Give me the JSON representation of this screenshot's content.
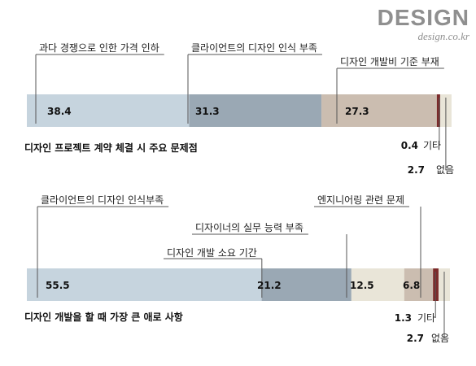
{
  "brand": {
    "logo": "DESIGN",
    "site": "design.co.kr"
  },
  "chart_data": [
    {
      "type": "bar",
      "title": "디자인 프로젝트 계약 체결 시 주요 문제점",
      "series": [
        {
          "name": "과다 경쟁으로 인한 가격 인하",
          "value": 38.4,
          "color": "#c6d4de"
        },
        {
          "name": "클라이언트의 디자인 인식 부족",
          "value": 31.3,
          "color": "#9aa8b4"
        },
        {
          "name": "디자인 개발비 기준 부재",
          "value": 27.3,
          "color": "#cbbdb0"
        },
        {
          "name": "기타",
          "value": 0.4,
          "color": "#c8a09e"
        },
        {
          "name": "없음",
          "value": 2.7,
          "color": "#e9e5d8"
        }
      ]
    },
    {
      "type": "bar",
      "title": "디자인 개발을 할 때 가장 큰 애로 사항",
      "series": [
        {
          "name": "클라이언트의 디자인 인식부족",
          "value": 55.5,
          "color": "#c6d4de"
        },
        {
          "name": "디자인 개발 소요 기간",
          "value": 21.2,
          "color": "#9aa8b4"
        },
        {
          "name": "디자이너의 실무 능력 부족",
          "value": 12.5,
          "color": "#e9e5d8"
        },
        {
          "name": "엔지니어링 관련 문제",
          "value": 6.8,
          "color": "#cbbdb0"
        },
        {
          "name": "기타",
          "value": 1.3,
          "color": "#b06a66"
        },
        {
          "name": "없음",
          "value": 2.7,
          "color": "#e9e5d8"
        }
      ]
    }
  ],
  "accent_color": "#7b2a2a"
}
